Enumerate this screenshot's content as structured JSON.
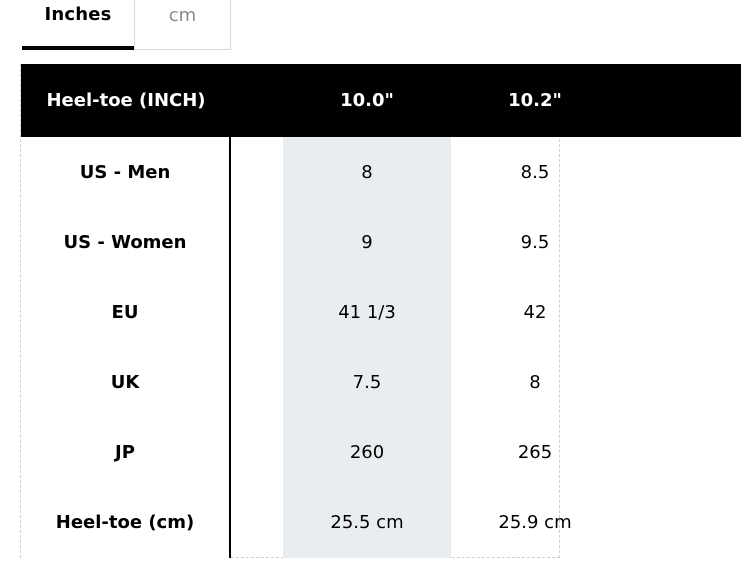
{
  "units": {
    "inches_label": "Inches",
    "cm_label": "cm",
    "selected": "Inches"
  },
  "table": {
    "header": {
      "label": "Heel-toe (INCH)",
      "columns": [
        "10.0\"",
        "10.2\""
      ]
    },
    "rows": [
      {
        "label": "US - Men",
        "values": [
          "8",
          "8.5"
        ]
      },
      {
        "label": "US - Women",
        "values": [
          "9",
          "9.5"
        ]
      },
      {
        "label": "EU",
        "values": [
          "41 1/3",
          "42"
        ]
      },
      {
        "label": "UK",
        "values": [
          "7.5",
          "8"
        ]
      },
      {
        "label": "JP",
        "values": [
          "260",
          "265"
        ]
      },
      {
        "label": "Heel-toe (cm)",
        "values": [
          "25.5 cm",
          "25.9 cm"
        ]
      }
    ]
  },
  "colors": {
    "header_bg": "#000000",
    "highlight_column": "#eaedf0",
    "inactive_tab_text": "#8a8a8a"
  }
}
